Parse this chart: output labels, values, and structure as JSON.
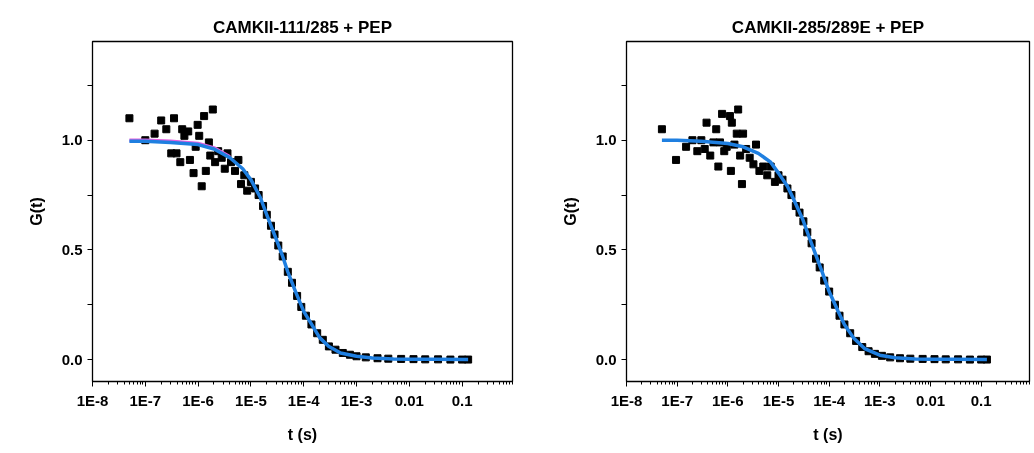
{
  "chart_data": [
    {
      "type": "scatter",
      "title": "CAMKII-111/285 + PEP",
      "xlabel": "t (s)",
      "ylabel": "G(t)",
      "log": "x",
      "xlim": [
        1e-08,
        0.9
      ],
      "ylim": [
        -0.1,
        1.45
      ],
      "xticks": [
        {
          "value": 1e-08,
          "label": "1E-8"
        },
        {
          "value": 1e-07,
          "label": "1E-7"
        },
        {
          "value": 1e-06,
          "label": "1E-6"
        },
        {
          "value": 1e-05,
          "label": "1E-5"
        },
        {
          "value": 0.0001,
          "label": "1E-4"
        },
        {
          "value": 0.001,
          "label": "1E-3"
        },
        {
          "value": 0.01,
          "label": "0.01"
        },
        {
          "value": 0.1,
          "label": "0.1"
        }
      ],
      "yticks": [
        {
          "value": 0,
          "label": "0.0"
        },
        {
          "value": 0.25,
          "label": null
        },
        0.5,
        {
          "value": 0.75,
          "label": null
        },
        {
          "value": 1,
          "label": "1.0"
        },
        {
          "value": 1.25,
          "label": null
        }
      ],
      "series": [
        {
          "marker": "square",
          "color": "#000000",
          "x": [
            5e-08,
            1e-07,
            1.5e-07,
            2e-07,
            2.5e-07,
            3.1e-07,
            3.5e-07,
            3.9e-07,
            4.6e-07,
            5e-07,
            5.5e-07,
            6.5e-07,
            7e-07,
            8.2e-07,
            9e-07,
            9.8e-07,
            1.05e-06,
            1.17e-06,
            1.3e-06,
            1.4e-06,
            1.6e-06,
            1.7e-06,
            1.9e-06,
            2.1e-06,
            2.4e-06,
            2.8e-06,
            3.2e-06,
            3.6e-06,
            4.2e-06,
            5e-06,
            5.8e-06,
            6.5e-06,
            7.5e-06,
            8.5e-06,
            1e-05,
            1.2e-05,
            1.4e-05,
            1.7e-05,
            2e-05,
            2.4e-05,
            2.8e-05,
            3.3e-05,
            4e-05,
            5e-05,
            6e-05,
            7.5e-05,
            9e-05,
            0.00011,
            0.00014,
            0.00018,
            0.00023,
            0.0003,
            0.0004,
            0.00055,
            0.00075,
            0.001,
            0.0015,
            0.0025,
            0.004,
            0.007,
            0.012,
            0.02,
            0.035,
            0.06,
            0.1,
            0.13
          ],
          "values": [
            1.1,
            1.0,
            1.03,
            1.09,
            1.05,
            0.94,
            1.1,
            0.94,
            0.9,
            1.05,
            1.02,
            1.04,
            0.91,
            0.85,
            0.97,
            1.07,
            1.02,
            0.79,
            1.11,
            0.86,
            0.99,
            0.93,
            1.14,
            0.9,
            0.95,
            0.92,
            0.87,
            0.94,
            0.9,
            0.86,
            0.91,
            0.8,
            0.84,
            0.77,
            0.81,
            0.78,
            0.75,
            0.7,
            0.66,
            0.61,
            0.57,
            0.52,
            0.47,
            0.4,
            0.35,
            0.29,
            0.24,
            0.2,
            0.16,
            0.12,
            0.09,
            0.06,
            0.045,
            0.03,
            0.022,
            0.015,
            0.01,
            0.006,
            0.004,
            0.003,
            0.002,
            0.001,
            0.001,
            0.0,
            0.0,
            0.0
          ]
        },
        {
          "type": "line",
          "marker": "none",
          "color": "#e060e0",
          "x": [
            5e-08,
            1e-07,
            3e-07,
            1e-06,
            2e-06,
            4e-06
          ],
          "values": [
            1.0,
            1.0,
            0.995,
            0.985,
            0.965,
            0.925
          ]
        },
        {
          "type": "line",
          "marker": "none",
          "color": "#1f7fe0",
          "x": [
            5e-08,
            1e-07,
            3e-07,
            1e-06,
            2e-06,
            4e-06,
            7e-06,
            1e-05,
            1.5e-05,
            2e-05,
            3e-05,
            4e-05,
            5e-05,
            7e-05,
            0.0001,
            0.00015,
            0.0002,
            0.0003,
            0.0005,
            0.001,
            0.002,
            0.005,
            0.01,
            0.03,
            0.13
          ],
          "values": [
            0.995,
            0.995,
            0.99,
            0.98,
            0.96,
            0.92,
            0.87,
            0.82,
            0.74,
            0.66,
            0.55,
            0.47,
            0.4,
            0.31,
            0.22,
            0.15,
            0.1,
            0.06,
            0.03,
            0.015,
            0.007,
            0.003,
            0.002,
            0.001,
            0.0
          ]
        }
      ]
    },
    {
      "type": "scatter",
      "title": "CAMKII-285/289E + PEP",
      "xlabel": "t (s)",
      "ylabel": "G(t)",
      "log": "x",
      "xlim": [
        1e-08,
        0.9
      ],
      "ylim": [
        -0.1,
        1.45
      ],
      "xticks": [
        {
          "value": 1e-08,
          "label": "1E-8"
        },
        {
          "value": 1e-07,
          "label": "1E-7"
        },
        {
          "value": 1e-06,
          "label": "1E-6"
        },
        {
          "value": 1e-05,
          "label": "1E-5"
        },
        {
          "value": 0.0001,
          "label": "1E-4"
        },
        {
          "value": 0.001,
          "label": "1E-3"
        },
        {
          "value": 0.01,
          "label": "0.01"
        },
        {
          "value": 0.1,
          "label": "0.1"
        }
      ],
      "yticks": [
        {
          "value": 0,
          "label": "0.0"
        },
        {
          "value": 0.25,
          "label": null
        },
        0.5,
        {
          "value": 0.75,
          "label": null
        },
        {
          "value": 1,
          "label": "1.0"
        },
        {
          "value": 1.25,
          "label": null
        }
      ],
      "series": [
        {
          "marker": "square",
          "color": "#000000",
          "x": [
            5e-08,
            9.5e-08,
            1.5e-07,
            2e-07,
            2.5e-07,
            3e-07,
            3.5e-07,
            3.8e-07,
            4.5e-07,
            5.2e-07,
            5.9e-07,
            6.5e-07,
            7e-07,
            7.7e-07,
            8.5e-07,
            9.5e-07,
            1.1e-06,
            1.15e-06,
            1.2e-06,
            1.35e-06,
            1.5e-06,
            1.6e-06,
            1.75e-06,
            1.9e-06,
            2e-06,
            2.3e-06,
            2.7e-06,
            3.2e-06,
            3.6e-06,
            4.2e-06,
            5e-06,
            6e-06,
            7e-06,
            8.5e-06,
            1e-05,
            1.2e-05,
            1.5e-05,
            1.8e-05,
            2.2e-05,
            2.6e-05,
            3.1e-05,
            3.7e-05,
            4.5e-05,
            5.5e-05,
            6.5e-05,
            8e-05,
            0.0001,
            0.00013,
            0.00016,
            0.0002,
            0.00026,
            0.00034,
            0.00045,
            0.0006,
            0.0008,
            0.0011,
            0.0016,
            0.0025,
            0.004,
            0.007,
            0.012,
            0.02,
            0.035,
            0.06,
            0.1,
            0.13
          ],
          "values": [
            1.05,
            0.91,
            0.97,
            1.0,
            0.95,
            1.0,
            0.96,
            1.08,
            0.93,
            0.99,
            1.05,
            0.88,
            0.99,
            1.12,
            0.95,
            0.97,
            1.11,
            0.86,
            1.08,
            0.98,
            1.03,
            1.14,
            0.93,
            0.8,
            1.03,
            0.96,
            0.92,
            0.89,
            0.98,
            0.86,
            0.88,
            0.84,
            0.88,
            0.81,
            0.84,
            0.82,
            0.78,
            0.75,
            0.7,
            0.67,
            0.63,
            0.58,
            0.53,
            0.46,
            0.42,
            0.36,
            0.31,
            0.25,
            0.2,
            0.16,
            0.12,
            0.085,
            0.057,
            0.038,
            0.026,
            0.017,
            0.01,
            0.006,
            0.004,
            0.003,
            0.002,
            0.001,
            0.001,
            0.0,
            0.0,
            0.0
          ]
        },
        {
          "type": "line",
          "marker": "none",
          "color": "#1f7fe0",
          "x": [
            5e-08,
            1e-07,
            3e-07,
            1e-06,
            2e-06,
            4e-06,
            7e-06,
            1e-05,
            1.5e-05,
            2e-05,
            3e-05,
            4e-05,
            5e-05,
            7e-05,
            0.0001,
            0.00015,
            0.0002,
            0.0003,
            0.0005,
            0.001,
            0.002,
            0.005,
            0.01,
            0.03,
            0.13
          ],
          "values": [
            1.0,
            1.0,
            0.995,
            0.985,
            0.97,
            0.94,
            0.9,
            0.85,
            0.79,
            0.73,
            0.64,
            0.56,
            0.5,
            0.41,
            0.31,
            0.22,
            0.16,
            0.1,
            0.05,
            0.02,
            0.008,
            0.003,
            0.002,
            0.001,
            0.0
          ]
        }
      ]
    }
  ]
}
